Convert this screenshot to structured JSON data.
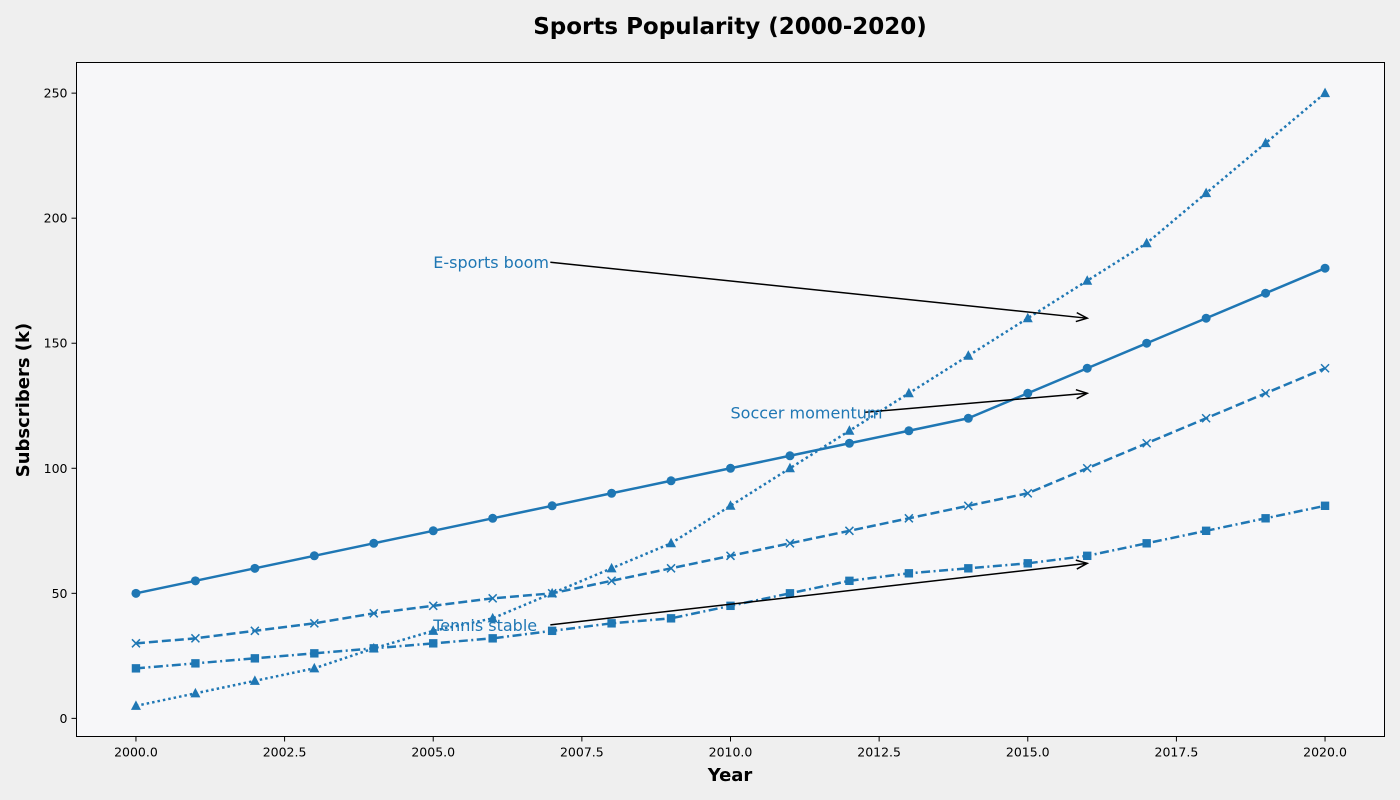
{
  "chart_data": {
    "type": "line",
    "title": "Sports Popularity (2000-2020)",
    "xlabel": "Year",
    "ylabel": "Subscribers (k)",
    "xlim": [
      1999,
      2021
    ],
    "ylim": [
      -7.25,
      262.25
    ],
    "xticks": [
      2000.0,
      2002.5,
      2005.0,
      2007.5,
      2010.0,
      2012.5,
      2015.0,
      2017.5,
      2020.0
    ],
    "xtick_labels": [
      "2000.0",
      "2002.5",
      "2005.0",
      "2007.5",
      "2010.0",
      "2012.5",
      "2015.0",
      "2017.5",
      "2020.0"
    ],
    "yticks": [
      0,
      50,
      100,
      150,
      200,
      250
    ],
    "ytick_labels": [
      "0",
      "50",
      "100",
      "150",
      "200",
      "250"
    ],
    "grid": false,
    "legend": "none",
    "color": "#1f77b4",
    "x": [
      2000,
      2001,
      2002,
      2003,
      2004,
      2005,
      2006,
      2007,
      2008,
      2009,
      2010,
      2011,
      2012,
      2013,
      2014,
      2015,
      2016,
      2017,
      2018,
      2019,
      2020
    ],
    "series": [
      {
        "key": "soccer",
        "marker": "circle",
        "dash": "solid",
        "values": [
          50,
          55,
          60,
          65,
          70,
          75,
          80,
          85,
          90,
          95,
          100,
          105,
          110,
          115,
          120,
          130,
          140,
          150,
          160,
          170,
          180
        ]
      },
      {
        "key": "basketball",
        "marker": "x",
        "dash": "dashed",
        "values": [
          30,
          32,
          35,
          38,
          42,
          45,
          48,
          50,
          55,
          60,
          65,
          70,
          75,
          80,
          85,
          90,
          100,
          110,
          120,
          130,
          140
        ]
      },
      {
        "key": "tennis",
        "marker": "square",
        "dash": "dashdot",
        "values": [
          20,
          22,
          24,
          26,
          28,
          30,
          32,
          35,
          38,
          40,
          45,
          50,
          55,
          58,
          60,
          62,
          65,
          70,
          75,
          80,
          85
        ]
      },
      {
        "key": "esports",
        "marker": "triangle",
        "dash": "dotted",
        "values": [
          5,
          10,
          15,
          20,
          28,
          35,
          40,
          50,
          60,
          70,
          85,
          100,
          115,
          130,
          145,
          160,
          175,
          190,
          210,
          230,
          250
        ]
      }
    ],
    "annotations": [
      {
        "text": "E-sports boom",
        "text_x": 2005,
        "text_y": 180,
        "arrow_x": 2016,
        "arrow_y": 160
      },
      {
        "text": "Soccer momentum",
        "text_x": 2010,
        "text_y": 120,
        "arrow_x": 2016,
        "arrow_y": 130
      },
      {
        "text": "Tennis stable",
        "text_x": 2005,
        "text_y": 35,
        "arrow_x": 2016,
        "arrow_y": 62
      }
    ]
  }
}
